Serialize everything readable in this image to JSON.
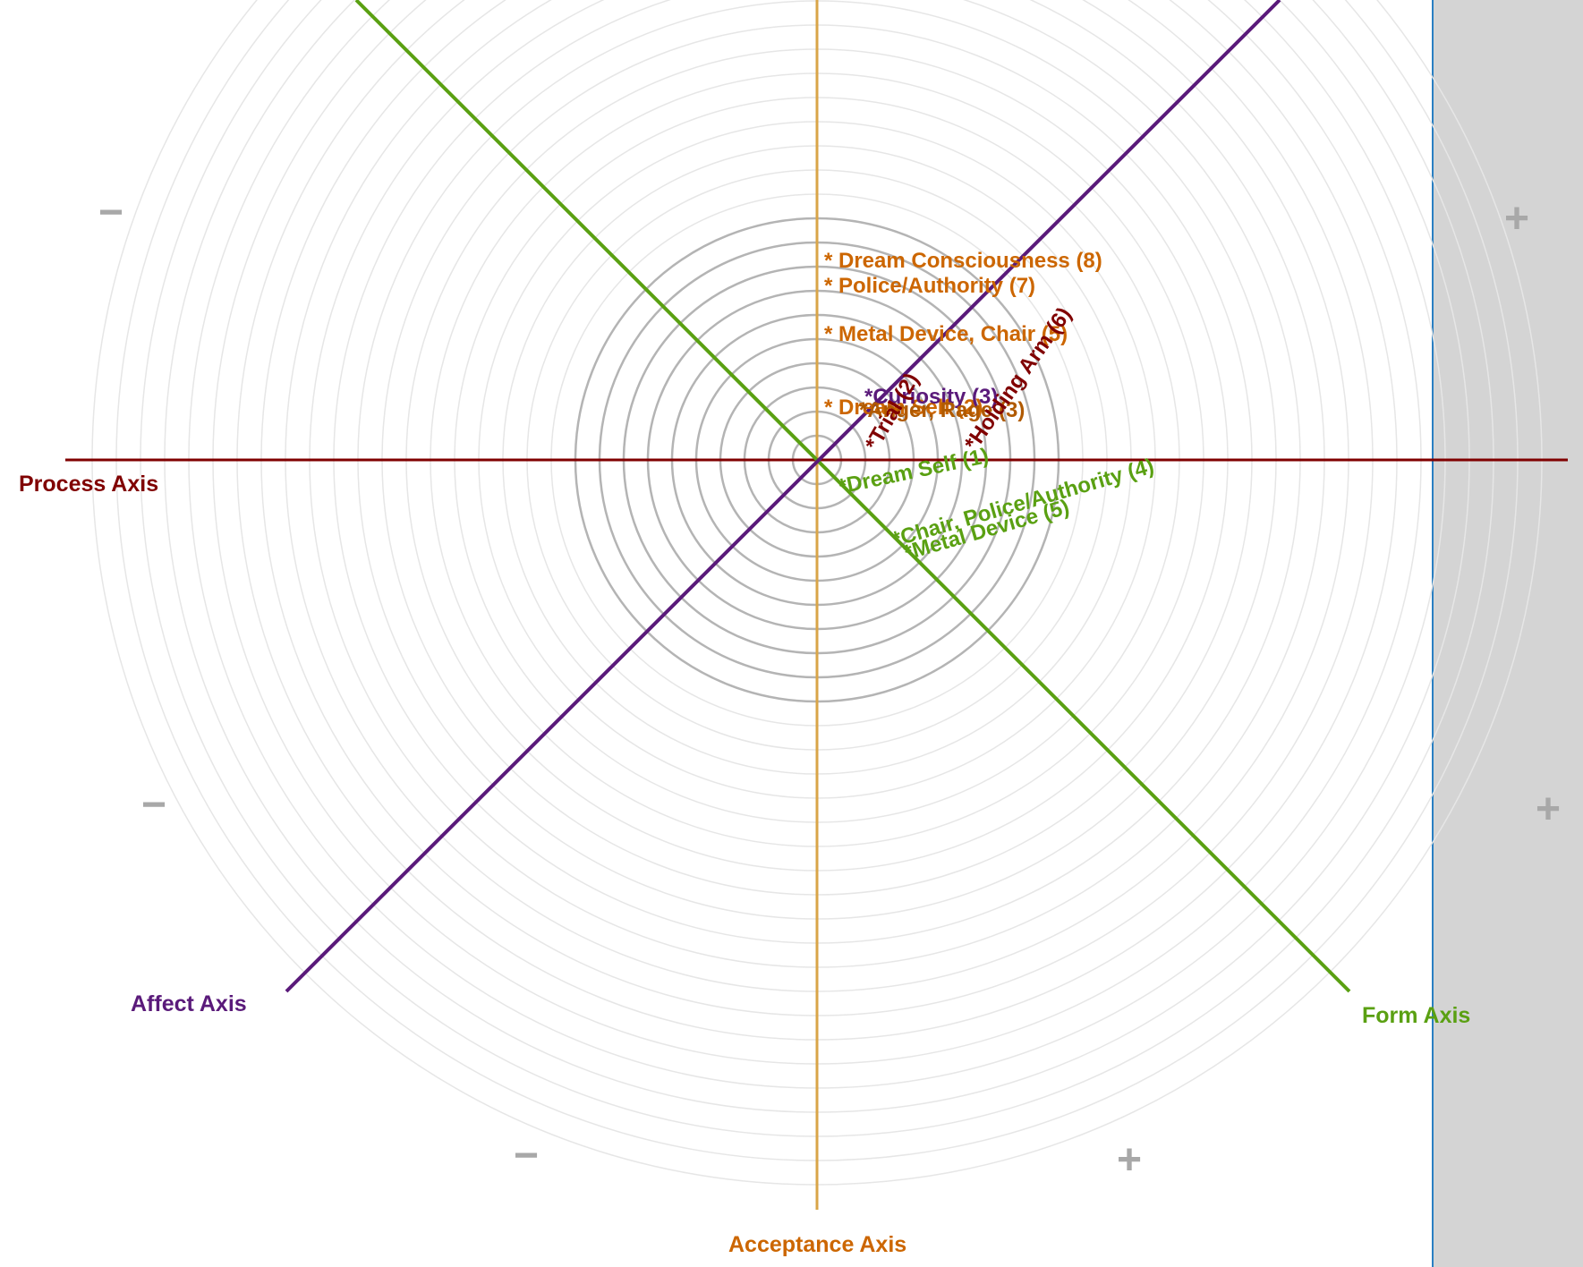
{
  "axes": [
    {
      "id": "process",
      "label": "Process Axis",
      "color": "#800000"
    },
    {
      "id": "affect",
      "label": "Affect Axis",
      "color": "#5a1a7a"
    },
    {
      "id": "form",
      "label": "Form Axis",
      "color": "#5aa012"
    },
    {
      "id": "acceptance",
      "label": "Acceptance Axis",
      "color": "#cc6600",
      "line_color": "#d9a548"
    }
  ],
  "signs": {
    "minus": "−",
    "plus": "+"
  },
  "items": {
    "acceptance": [
      {
        "label": "* Dream Consciousness (8)"
      },
      {
        "label": "* Police/Authority (7)"
      },
      {
        "label": "* Metal Device, Chair (5)"
      },
      {
        "label": "* Dream Self (2)"
      }
    ],
    "affect": [
      {
        "label": "*Curiosity (3)"
      },
      {
        "label": "*Anger, Rage (3)"
      }
    ],
    "process": [
      {
        "label": "*Holding Arm (6)"
      },
      {
        "label": "*Trial (2)"
      }
    ],
    "form": [
      {
        "label": "*Dream Self (1)"
      },
      {
        "label": "*Chair, Police/Authority (4)"
      },
      {
        "label": "*Metal Device (5)"
      }
    ]
  },
  "colors": {
    "ring_dark": "#b4b4b4",
    "ring_light": "#e6e6e6",
    "side_panel": "#d4d4d4",
    "divider": "#2a7fc2",
    "sign": "#a8a8a8"
  }
}
